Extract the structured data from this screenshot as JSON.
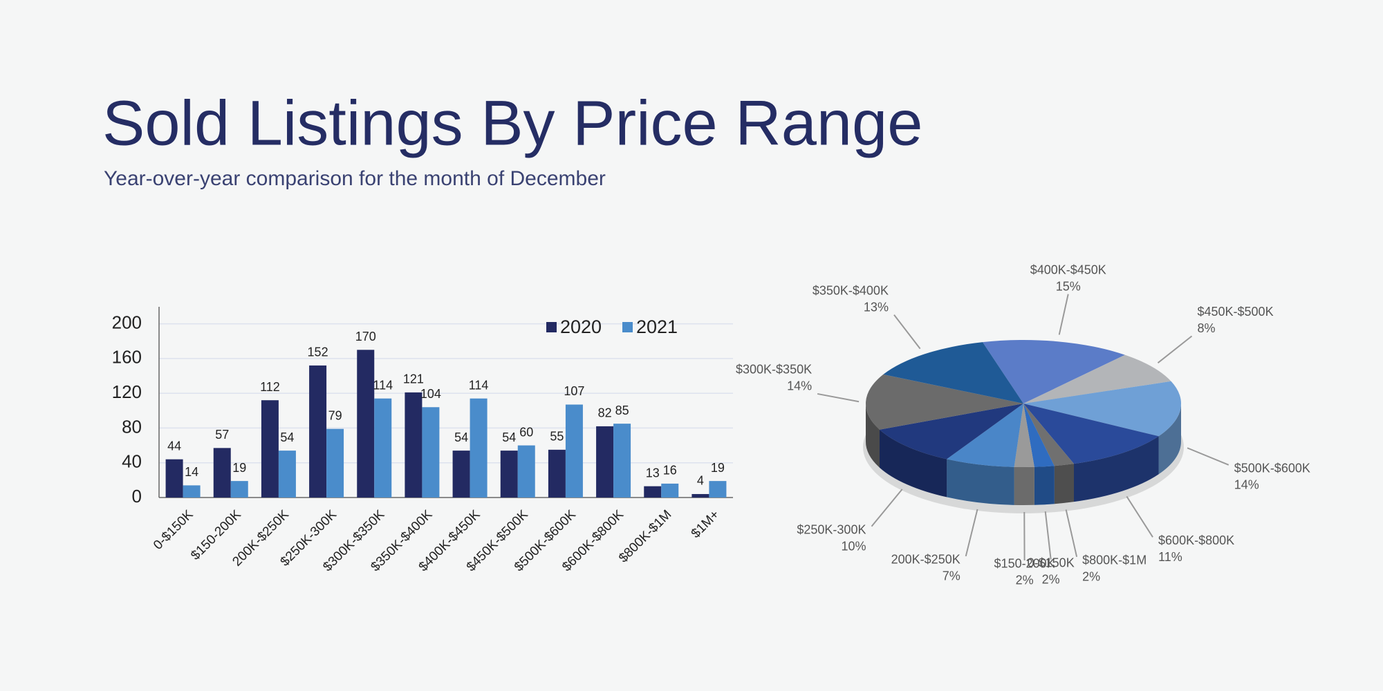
{
  "title": "Sold Listings By Price Range",
  "subtitle": "Year-over-year comparison for the month of December",
  "chart_data": [
    {
      "type": "bar",
      "categories": [
        "0-$150K",
        "$150-200K",
        "200K-$250K",
        "$250K-300K",
        "$300K-$350K",
        "$350K-$400K",
        "$400K-$450K",
        "$450K-$500K",
        "$500K-$600K",
        "$600K-$800K",
        "$800K-$1M",
        "$1M+"
      ],
      "series": [
        {
          "name": "2020",
          "color": "#232a62",
          "values": [
            44,
            57,
            112,
            152,
            170,
            121,
            54,
            54,
            55,
            82,
            13,
            4
          ]
        },
        {
          "name": "2021",
          "color": "#4a8ccb",
          "values": [
            14,
            19,
            54,
            79,
            114,
            104,
            114,
            60,
            107,
            85,
            16,
            19
          ]
        }
      ],
      "ylim": [
        0,
        210
      ],
      "yticks": [
        0,
        40,
        80,
        120,
        160,
        200
      ],
      "grid": true,
      "legend": "top-right"
    },
    {
      "type": "pie",
      "categories": [
        "$400K-$450K",
        "$450K-$500K",
        "$500K-$600K",
        "$600K-$800K",
        "$800K-$1M",
        "0-$150K",
        "$150-200K",
        "200K-$250K",
        "$250K-300K",
        "$300K-$350K",
        "$350K-$400K"
      ],
      "values": [
        15,
        8,
        14,
        11,
        2,
        2,
        2,
        7,
        10,
        14,
        13
      ],
      "value_labels": [
        "15%",
        "8%",
        "14%",
        "11%",
        "2%",
        "2%",
        "2%",
        "7%",
        "10%",
        "14%",
        "13%"
      ],
      "colors": [
        "#5b7cc8",
        "#b3b5b8",
        "#6fa0d6",
        "#2a4a9a",
        "#707070",
        "#2f6cc0",
        "#9a9a9a",
        "#4a86c8",
        "#21397e",
        "#6b6b6b",
        "#1f5a96"
      ]
    }
  ]
}
